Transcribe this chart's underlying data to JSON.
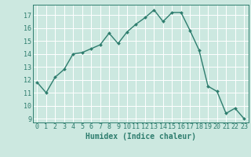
{
  "x": [
    0,
    1,
    2,
    3,
    4,
    5,
    6,
    7,
    8,
    9,
    10,
    11,
    12,
    13,
    14,
    15,
    16,
    17,
    18,
    19,
    20,
    21,
    22,
    23
  ],
  "y": [
    11.8,
    11.0,
    12.2,
    12.8,
    14.0,
    14.1,
    14.4,
    14.7,
    15.6,
    14.8,
    15.7,
    16.3,
    16.8,
    17.4,
    16.5,
    17.2,
    17.2,
    15.8,
    14.3,
    11.5,
    11.1,
    9.4,
    9.8,
    9.0
  ],
  "line_color": "#2e7d6e",
  "marker": "D",
  "marker_size": 2.0,
  "linewidth": 1.0,
  "background_color": "#cce8e0",
  "grid_color": "#ffffff",
  "xlabel": "Humidex (Indice chaleur)",
  "xlabel_fontsize": 7.0,
  "tick_color": "#2e7d6e",
  "tick_fontsize": 6.0,
  "ylim": [
    8.7,
    17.8
  ],
  "xlim": [
    -0.5,
    23.5
  ],
  "yticks": [
    9,
    10,
    11,
    12,
    13,
    14,
    15,
    16,
    17
  ],
  "xticks": [
    0,
    1,
    2,
    3,
    4,
    5,
    6,
    7,
    8,
    9,
    10,
    11,
    12,
    13,
    14,
    15,
    16,
    17,
    18,
    19,
    20,
    21,
    22,
    23
  ]
}
